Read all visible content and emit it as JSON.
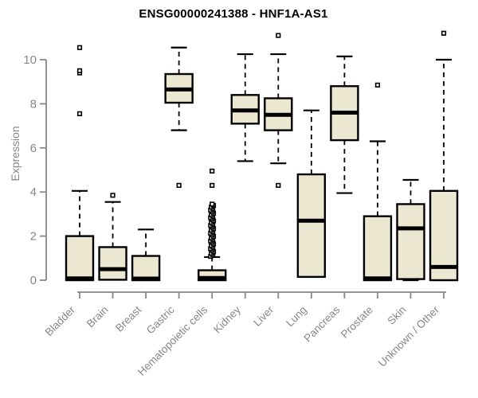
{
  "header": {
    "title": "ENSG00000241388 - HNF1A-AS1"
  },
  "chart_data": {
    "type": "boxplot",
    "title": "ENSG00000241388 - HNF1A-AS1",
    "xlabel": "",
    "ylabel": "Expression",
    "ylim": [
      0,
      11.3
    ],
    "yticks": [
      "0",
      "2",
      "4",
      "6",
      "8",
      "10"
    ],
    "ytick_values": [
      0,
      2,
      4,
      6,
      8,
      10
    ],
    "grid": false,
    "legend": "none",
    "colors": {
      "box_fill": "#ece7d0",
      "box_stroke": "#000000",
      "median": "#000000",
      "whisker": "#000000",
      "outlier_stroke": "#000000",
      "outlier_fill": "#ffffff",
      "axis": "#878787",
      "tick_label": "#878787",
      "title": "#000000",
      "background": "#ffffff"
    },
    "categories": [
      "Bladder",
      "Brain",
      "Breast",
      "Gastric",
      "Hematopoietic cells",
      "Kidney",
      "Liver",
      "Lung",
      "Pancreas",
      "Prostate",
      "Skin",
      "Unknown / Other"
    ],
    "series": [
      {
        "category": "Bladder",
        "min": 0,
        "q1": 0,
        "median": 0.08,
        "q3": 2.0,
        "max": 4.05,
        "outliers": [
          7.55,
          9.4,
          9.5,
          10.55
        ]
      },
      {
        "category": "Brain",
        "min": 0,
        "q1": 0.02,
        "median": 0.5,
        "q3": 1.5,
        "max": 3.55,
        "outliers": [
          3.85
        ]
      },
      {
        "category": "Breast",
        "min": 0,
        "q1": 0,
        "median": 0.07,
        "q3": 1.1,
        "max": 2.3,
        "outliers": []
      },
      {
        "category": "Gastric",
        "min": 6.8,
        "q1": 8.05,
        "median": 8.65,
        "q3": 9.35,
        "max": 10.55,
        "outliers": [
          4.3
        ]
      },
      {
        "category": "Hematopoietic cells",
        "min": 0,
        "q1": 0,
        "median": 0.1,
        "q3": 0.45,
        "max": 1.05,
        "outliers": [
          1.08,
          1.15,
          1.22,
          1.29,
          1.36,
          1.43,
          1.5,
          1.57,
          1.64,
          1.71,
          1.78,
          1.85,
          1.92,
          1.99,
          2.06,
          2.13,
          2.2,
          2.27,
          2.34,
          2.41,
          2.48,
          2.55,
          2.62,
          2.69,
          2.76,
          2.83,
          2.9,
          2.97,
          3.04,
          3.11,
          3.18,
          3.25,
          3.32,
          3.39,
          3.45,
          4.3,
          4.95
        ]
      },
      {
        "category": "Kidney",
        "min": 5.4,
        "q1": 7.1,
        "median": 7.7,
        "q3": 8.4,
        "max": 10.25,
        "outliers": []
      },
      {
        "category": "Liver",
        "min": 5.3,
        "q1": 6.8,
        "median": 7.5,
        "q3": 8.25,
        "max": 10.25,
        "outliers": [
          4.3,
          11.1
        ]
      },
      {
        "category": "Lung",
        "min": 0.15,
        "q1": 0.15,
        "median": 2.7,
        "q3": 4.8,
        "max": 7.7,
        "outliers": []
      },
      {
        "category": "Pancreas",
        "min": 3.95,
        "q1": 6.35,
        "median": 7.6,
        "q3": 8.8,
        "max": 10.15,
        "outliers": []
      },
      {
        "category": "Prostate",
        "min": 0,
        "q1": 0,
        "median": 0.08,
        "q3": 2.9,
        "max": 6.3,
        "outliers": [
          8.85
        ]
      },
      {
        "category": "Skin",
        "min": 0,
        "q1": 0.05,
        "median": 2.35,
        "q3": 3.45,
        "max": 4.55,
        "outliers": []
      },
      {
        "category": "Unknown / Other",
        "min": 0,
        "q1": 0,
        "median": 0.6,
        "q3": 4.05,
        "max": 10.0,
        "outliers": [
          11.2
        ]
      }
    ]
  }
}
